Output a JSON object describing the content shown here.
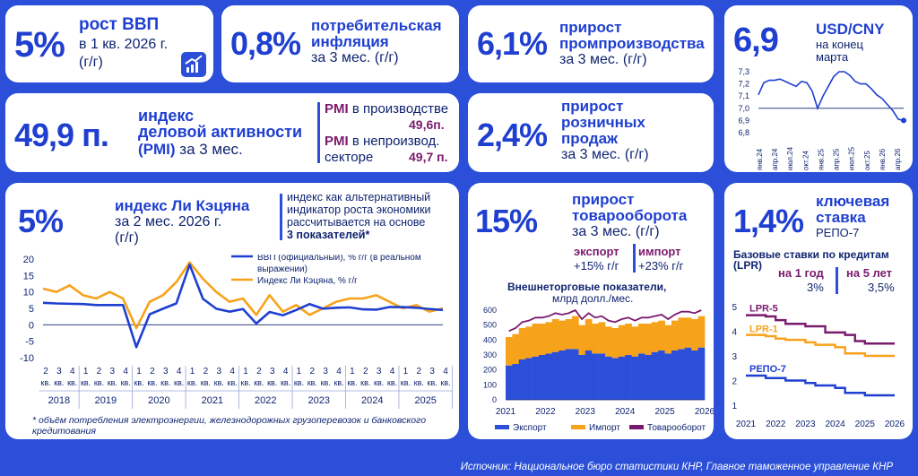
{
  "colors": {
    "background": "#2b4fd8",
    "accent": "#1f3fd0",
    "purple": "#7a1a6e",
    "orange": "#f7a21b",
    "blue_line": "#1f3fd0"
  },
  "gdp": {
    "value": "5%",
    "title": "рост ВВП",
    "line1": "в 1 кв. 2026 г.",
    "line2": "(г/г)",
    "icon": "growth-chart-icon"
  },
  "inflation": {
    "value": "0,8%",
    "title1": "потребительская",
    "title2": "инфляция",
    "line1": "за 3 мес. (г/г)"
  },
  "industry": {
    "value": "6,1%",
    "title1": "прирост",
    "title2": "промпроизводства",
    "line1": "за 3 мес. (г/г)"
  },
  "usd_cny": {
    "value": "6,9",
    "title": "USD/CNY",
    "line1": "на конец",
    "line2": "марта"
  },
  "pmi": {
    "value": "49,9 п.",
    "title1": "индекс",
    "title2": "деловой активности",
    "title3_bold": "(PMI)",
    "title3_rest": " за 3 мес.",
    "prod_label_bold": "PMI",
    "prod_label_rest": " в производстве",
    "prod_value": "49,6п.",
    "nonprod_label_bold": "PMI",
    "nonprod_label_rest": " в непроизвод.",
    "nonprod_label2": "секторе",
    "nonprod_value": "49,7 п."
  },
  "retail": {
    "value": "2,4%",
    "title1": "прирост",
    "title2": "розничных",
    "title3": "продаж",
    "line1": "за 3 мес. (г/г)"
  },
  "li": {
    "value": "5%",
    "title": "индекс Ли Кэцяна",
    "line1": "за 2 мес. 2026 г.",
    "line2": "(г/г)",
    "note1": "индекс как альтернативный",
    "note2": "индикатор роста экономики",
    "note3": "рассчитывается на основе",
    "note4": "3 показателей*",
    "footnote1": "* объём потребления электроэнергии, железнодорожных грузоперевозок и банковского",
    "footnote2": "кредитования"
  },
  "trade": {
    "value": "15%",
    "title1": "прирост",
    "title2": "товарооборота",
    "line1": "за 3 мес. (г/г)",
    "export_label": "экспорт",
    "export_value": "+15% г/г",
    "import_label": "импорт",
    "import_value": "+23% г/г",
    "chart_title1": "Внешнеторговые показатели,",
    "chart_title2": "млрд долл./мес."
  },
  "rate": {
    "value": "1,4%",
    "title1": "ключевая",
    "title2": "ставка",
    "line1": "РЕПО-7",
    "lpr_title1": "Базовые ставки по кредитам",
    "lpr_title2": "(LPR)",
    "lpr1_label": "на 1 год",
    "lpr1_value": "3%",
    "lpr5_label": "на 5 лет",
    "lpr5_value": "3,5%"
  },
  "source": "Источник: Национальное бюро статистики КНР, Главное таможенное управление КНР",
  "chart_data": [
    {
      "type": "line",
      "series": [
        {
          "name": "USD/CNY",
          "values": [
            7.11,
            7.21,
            7.23,
            7.23,
            7.24,
            7.22,
            7.2,
            7.18,
            7.22,
            7.21,
            7.14,
            7.0,
            7.1,
            7.18,
            7.26,
            7.3,
            7.3,
            7.27,
            7.22,
            7.2,
            7.2,
            7.16,
            7.11,
            7.08,
            7.03,
            6.98,
            6.91,
            6.9
          ]
        }
      ],
      "ylim": [
        6.8,
        7.3
      ],
      "yticks": [
        "7,3",
        "7,2",
        "7,1",
        "7,0",
        "6,9",
        "6,8"
      ],
      "xticks": [
        "янв.24",
        "апр.24",
        "июл.24",
        "окт.24",
        "янв.25",
        "апр.25",
        "июл.25",
        "окт.25",
        "янв.26",
        "апр.26"
      ]
    },
    {
      "type": "line",
      "ylim": [
        -10,
        20
      ],
      "yticks": [
        "20",
        "15",
        "10",
        "5",
        "0",
        "-5",
        "-10"
      ],
      "quarters": [
        "2",
        "3",
        "4",
        "1",
        "2",
        "3",
        "4",
        "1",
        "2",
        "3",
        "4",
        "1",
        "2",
        "3",
        "4",
        "1",
        "2",
        "3",
        "4",
        "1",
        "2",
        "3",
        "4",
        "1",
        "2",
        "3",
        "4",
        "1",
        "2",
        "3",
        "4"
      ],
      "quarter_suffix": "кв.",
      "years": [
        "2018",
        "2019",
        "2020",
        "2021",
        "2022",
        "2023",
        "2024",
        "2025"
      ],
      "series": [
        {
          "name": "ВВП (официальный), % г/г (в реальном выражении)",
          "values": [
            6.7,
            6.5,
            6.4,
            6.3,
            6.0,
            6.0,
            6.0,
            -6.8,
            3.2,
            4.9,
            6.5,
            18.3,
            7.9,
            4.9,
            4.0,
            4.8,
            0.4,
            3.9,
            2.9,
            4.5,
            6.3,
            4.9,
            5.2,
            5.3,
            4.7,
            4.6,
            5.4,
            5.4,
            5.2,
            4.8,
            4.5
          ]
        },
        {
          "name": "Индекс Ли Кэцяна, % г/г",
          "values": [
            11,
            10,
            12,
            9,
            8,
            10,
            8,
            -1,
            7,
            9,
            13,
            19,
            14,
            10,
            7,
            8,
            3,
            9,
            4,
            6,
            3,
            5,
            7,
            8,
            8,
            9,
            7,
            5,
            6,
            4,
            5
          ]
        }
      ]
    },
    {
      "type": "area",
      "title": "Внешнеторговые показатели, млрд долл./мес.",
      "ylim": [
        0,
        600
      ],
      "yticks": [
        "600",
        "500",
        "400",
        "300",
        "200",
        "100",
        "0"
      ],
      "xticks": [
        "2021",
        "2022",
        "2023",
        "2024",
        "2025",
        "2026"
      ],
      "series": [
        {
          "name": "Экспорт",
          "values": [
            230,
            240,
            270,
            280,
            290,
            300,
            310,
            320,
            330,
            340,
            340,
            300,
            330,
            310,
            310,
            290,
            280,
            290,
            300,
            290,
            310,
            300,
            320,
            330,
            310,
            330,
            340,
            350,
            330,
            350
          ]
        },
        {
          "name": "Импорт",
          "values": [
            190,
            200,
            210,
            210,
            220,
            210,
            210,
            220,
            200,
            200,
            220,
            200,
            210,
            200,
            210,
            200,
            200,
            210,
            210,
            200,
            200,
            210,
            200,
            200,
            190,
            200,
            210,
            200,
            210,
            210
          ]
        },
        {
          "name": "Товарооборот",
          "values": [
            420,
            440,
            480,
            490,
            510,
            510,
            520,
            540,
            530,
            540,
            560,
            500,
            540,
            510,
            520,
            490,
            480,
            500,
            510,
            490,
            510,
            510,
            520,
            530,
            500,
            530,
            550,
            550,
            540,
            560
          ]
        }
      ]
    },
    {
      "type": "line",
      "ylim": [
        1,
        5
      ],
      "yticks": [
        "5",
        "4",
        "3",
        "2",
        "1"
      ],
      "xticks": [
        "2021",
        "2022",
        "2023",
        "2024",
        "2025",
        "2026"
      ],
      "series": [
        {
          "name": "LPR-5",
          "values": [
            4.65,
            4.65,
            4.6,
            4.45,
            4.3,
            4.3,
            4.2,
            4.2,
            3.95,
            3.95,
            3.85,
            3.6,
            3.5,
            3.5,
            3.5,
            3.5
          ]
        },
        {
          "name": "LPR-1",
          "values": [
            3.85,
            3.85,
            3.8,
            3.7,
            3.65,
            3.65,
            3.55,
            3.45,
            3.45,
            3.35,
            3.1,
            3.1,
            3.0,
            3.0,
            3.0,
            3.0
          ]
        },
        {
          "name": "РЕПО-7",
          "values": [
            2.2,
            2.2,
            2.1,
            2.1,
            2.0,
            2.0,
            1.9,
            1.8,
            1.8,
            1.7,
            1.5,
            1.5,
            1.4,
            1.4,
            1.4,
            1.4
          ]
        }
      ]
    }
  ]
}
